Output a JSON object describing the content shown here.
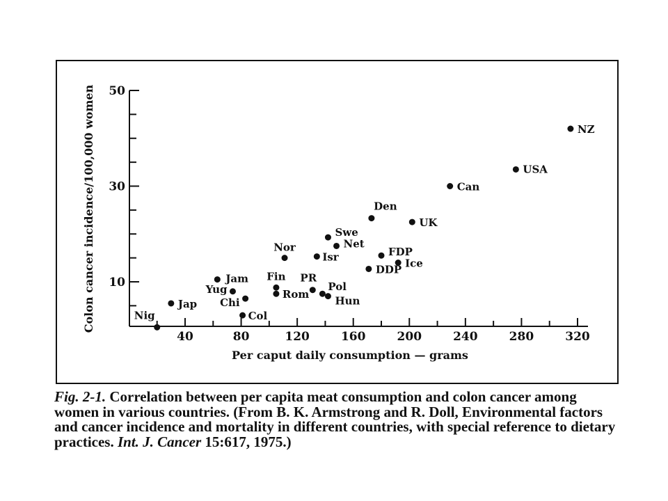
{
  "chart_data": {
    "type": "scatter",
    "title": "",
    "xlabel": "Per caput daily consumption — grams",
    "ylabel": "Colon cancer incidence/100,000 women",
    "xlim": [
      0,
      330
    ],
    "ylim": [
      0,
      50
    ],
    "x_ticks": [
      40,
      80,
      120,
      160,
      200,
      240,
      280,
      320
    ],
    "y_ticks": [
      10,
      30,
      50
    ],
    "grid": false,
    "points": [
      {
        "label": "Nig",
        "x": 20,
        "y": 0.5
      },
      {
        "label": "Jap",
        "x": 30,
        "y": 5.5
      },
      {
        "label": "Jam",
        "x": 63,
        "y": 10.5
      },
      {
        "label": "Yug",
        "x": 74,
        "y": 8
      },
      {
        "label": "Chi",
        "x": 83,
        "y": 6.5
      },
      {
        "label": "Col",
        "x": 81,
        "y": 3
      },
      {
        "label": "Fin",
        "x": 105,
        "y": 8.8
      },
      {
        "label": "Rom",
        "x": 105,
        "y": 7.5
      },
      {
        "label": "Nor",
        "x": 111,
        "y": 15
      },
      {
        "label": "PR",
        "x": 131,
        "y": 8.3
      },
      {
        "label": "Pol",
        "x": 138,
        "y": 7.5
      },
      {
        "label": "Hun",
        "x": 142,
        "y": 7
      },
      {
        "label": "Isr",
        "x": 134,
        "y": 15.3
      },
      {
        "label": "Swe",
        "x": 142,
        "y": 19.3
      },
      {
        "label": "Net",
        "x": 148,
        "y": 17.5
      },
      {
        "label": "Den",
        "x": 173,
        "y": 23.3
      },
      {
        "label": "DDP",
        "x": 171,
        "y": 12.7
      },
      {
        "label": "FDP",
        "x": 180,
        "y": 15.5
      },
      {
        "label": "Ice",
        "x": 192,
        "y": 14
      },
      {
        "label": "UK",
        "x": 202,
        "y": 22.5
      },
      {
        "label": "Can",
        "x": 229,
        "y": 30
      },
      {
        "label": "USA",
        "x": 276,
        "y": 33.5
      },
      {
        "label": "NZ",
        "x": 315,
        "y": 42
      }
    ]
  },
  "caption": {
    "fig_label": "Fig. 2-1.",
    "text_1": " Correlation between per capita meat consumption and colon cancer among women in various countries. (From B. K. Armstrong and R. Doll, Environmental factors and cancer incidence and mortality in different countries, with special reference to dietary practices. ",
    "journal": "Int. J. Cancer",
    "text_2": " 15:617, 1975.)"
  },
  "colors": {
    "ink": "#111111",
    "background": "#ffffff"
  }
}
